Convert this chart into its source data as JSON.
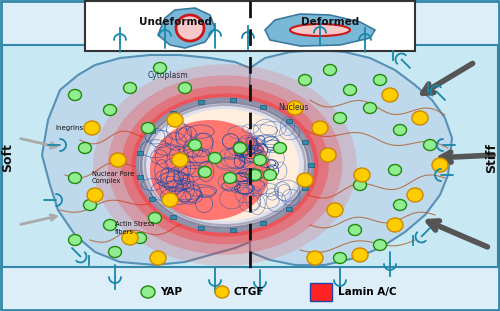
{
  "bg_color": "#c8e8f4",
  "cell_color": "#b0d4e8",
  "cell_edge_color": "#5590b8",
  "nucleus_red_outer": "#ff2020",
  "nucleus_red_inner": "#ff4444",
  "nucleus_center_color": "#eeeeff",
  "lamin_color": "#b0b8cc",
  "chromatin_color": "#2850a0",
  "yap_face": "#90ee90",
  "yap_edge": "#22880a",
  "ctgf_face": "#ffcc00",
  "ctgf_edge": "#cc8800",
  "arrow_dark": "#555555",
  "arrow_light": "#aaaaaa",
  "dashed_line_color": "#111111",
  "integrin_color": "#1888a8",
  "actin_color": "#b06030",
  "soft_label": "Soft",
  "stiff_label": "Stiff",
  "undeformed_label": "Undeformed",
  "deformed_label": "Deformed",
  "cytoplasm_label": "Cytoplasm",
  "nucleus_label": "Nucleus",
  "integrin_label": "Inegrins",
  "npc_label": "Nuclear Pore\nComplex",
  "actin_label": "Actin Stress\nfibers",
  "legend_yap": "YAP",
  "legend_ctgf": "CTGF",
  "legend_lamin": "Lamin A/C",
  "title_box_color": "#ffffff",
  "title_box_edge": "#444444",
  "inset_cell_color": "#7ab8d8",
  "inset_nucleus_pink": "#f8c8c8",
  "inset_nucleus_edge": "#cc1818",
  "outer_bg_color": "#ddeef8"
}
